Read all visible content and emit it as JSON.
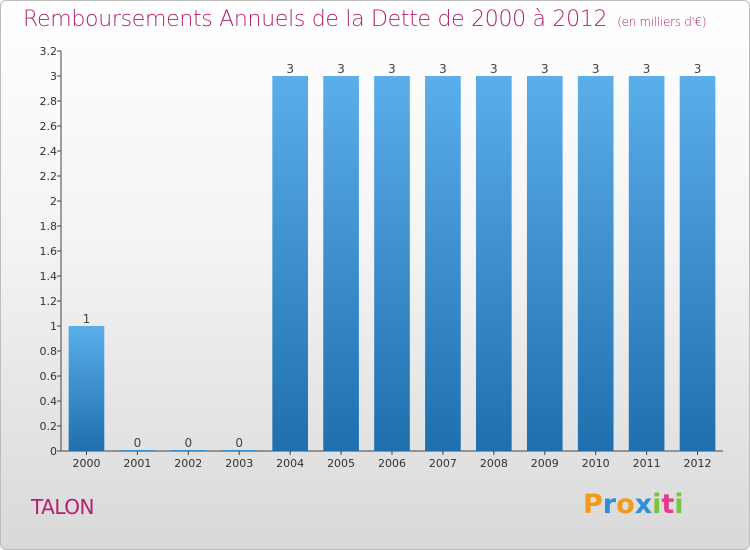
{
  "title": "Remboursements Annuels de la Dette de 2000 à 2012",
  "subtitle": "(en milliers d'€)",
  "commune": "TALON",
  "brand": {
    "text": "Proxiti",
    "letters": [
      "P",
      "r",
      "o",
      "x",
      "i",
      "t",
      "i"
    ],
    "colors": [
      "#f39a1e",
      "#2f8fd8",
      "#f39a1e",
      "#2f8fd8",
      "#7cc242",
      "#e63a8e",
      "#7cc242"
    ]
  },
  "colors": {
    "bar_top": "#5aaeea",
    "bar_bottom": "#1f6fae",
    "title": "#b3206f"
  },
  "chart_data": {
    "type": "bar",
    "title": "Remboursements Annuels de la Dette de 2000 à 2012",
    "subtitle": "(en milliers d'€)",
    "xlabel": "",
    "ylabel": "",
    "categories": [
      "2000",
      "2001",
      "2002",
      "2003",
      "2004",
      "2005",
      "2006",
      "2007",
      "2008",
      "2009",
      "2010",
      "2011",
      "2012"
    ],
    "values": [
      1,
      0,
      0,
      0,
      3,
      3,
      3,
      3,
      3,
      3,
      3,
      3,
      3
    ],
    "data_labels": [
      "1",
      "0",
      "0",
      "0",
      "3",
      "3",
      "3",
      "3",
      "3",
      "3",
      "3",
      "3",
      "3"
    ],
    "ylim": [
      0,
      3.2
    ],
    "yticks": [
      0,
      0.2,
      0.4,
      0.6,
      0.8,
      1,
      1.2,
      1.4,
      1.6,
      1.8,
      2,
      2.2,
      2.4,
      2.6,
      2.8,
      3,
      3.2
    ],
    "ytick_labels": [
      "0",
      "0.2",
      "0.4",
      "0.6",
      "0.8",
      "1",
      "1.2",
      "1.4",
      "1.6",
      "1.8",
      "2",
      "2.2",
      "2.4",
      "2.6",
      "2.8",
      "3",
      "3.2"
    ],
    "grid": false,
    "legend": "none"
  }
}
